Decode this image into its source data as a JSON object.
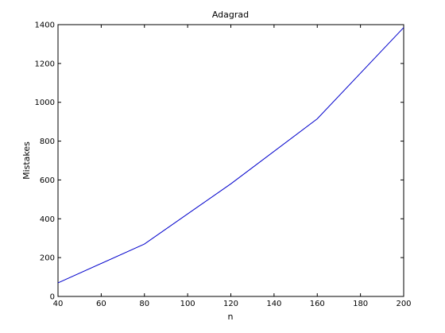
{
  "chart_data": {
    "type": "line",
    "title": "Adagrad",
    "xlabel": "n",
    "ylabel": "Mistakes",
    "xlim": [
      40,
      200
    ],
    "ylim": [
      0,
      1400
    ],
    "xticks": [
      40,
      60,
      80,
      100,
      120,
      140,
      160,
      180,
      200
    ],
    "yticks": [
      0,
      200,
      400,
      600,
      800,
      1000,
      1200,
      1400
    ],
    "grid": false,
    "series": [
      {
        "color": "#0000cc",
        "x": [
          40,
          80,
          120,
          160,
          200
        ],
        "y": [
          70,
          270,
          580,
          915,
          1385
        ]
      }
    ]
  }
}
